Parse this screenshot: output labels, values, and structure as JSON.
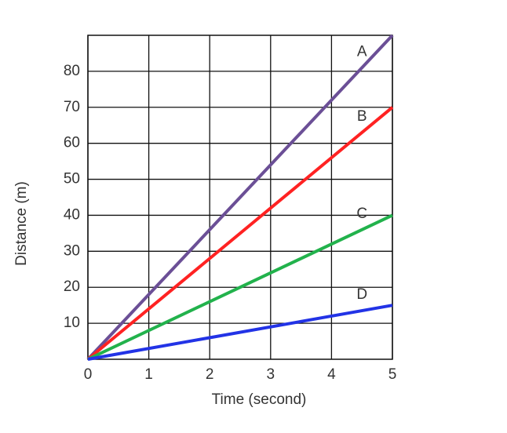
{
  "chart_data": {
    "type": "line",
    "x_label": "Time (second)",
    "y_label": "Distance (m)",
    "x": [
      0,
      5
    ],
    "series": [
      {
        "name": "A",
        "color": "#6b4f96",
        "values": [
          0,
          90
        ]
      },
      {
        "name": "B",
        "color": "#ff2222",
        "values": [
          0,
          70
        ]
      },
      {
        "name": "C",
        "color": "#22b24c",
        "values": [
          0,
          40
        ]
      },
      {
        "name": "D",
        "color": "#2233e6",
        "values": [
          0,
          15
        ]
      }
    ],
    "xlim": [
      0,
      5
    ],
    "xticks": [
      0,
      1,
      2,
      3,
      4,
      5
    ],
    "ylim": [
      0,
      90
    ],
    "yticks": [
      10,
      20,
      30,
      40,
      50,
      60,
      70,
      80
    ],
    "grid": true
  }
}
